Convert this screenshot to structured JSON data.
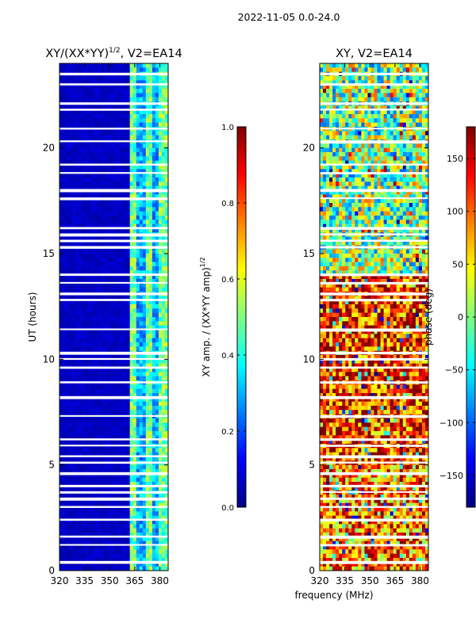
{
  "figure_title": "2022-11-05 0.0-24.0",
  "shared_xlabel": "frequency (MHz)",
  "colors": {
    "jet": [
      "#00007f",
      "#0000ff",
      "#007fff",
      "#00ffff",
      "#7fff7f",
      "#ffff00",
      "#ff7f00",
      "#ff0000",
      "#7f0000"
    ],
    "background": "#ffffff"
  },
  "chart_data": [
    {
      "type": "heatmap",
      "title": "XY/(XX*YY)^1/2, V2=EA14",
      "title_base": "XY/(XX*YY)",
      "title_sup": "1/2",
      "title_rest": ", V2=EA14",
      "xlabel": "",
      "ylabel": "UT (hours)",
      "xlim": [
        320,
        385
      ],
      "ylim": [
        0,
        24
      ],
      "xticks": [
        320,
        335,
        350,
        365,
        380
      ],
      "yticks": [
        0,
        5,
        10,
        15,
        20
      ],
      "description_values": "amplitude mostly ~0.05 below 361 MHz; 0.3-0.6 between 363-382 MHz in vertical stripes",
      "colorbar": {
        "label": "XY amp. / (XX*YY amp)^1/2",
        "label_base": "XY amp. / (XX*YY amp)",
        "label_sup": "1/2",
        "range": [
          0.0,
          1.0
        ],
        "ticks": [
          "0.0",
          "0.2",
          "0.4",
          "0.6",
          "0.8",
          "1.0"
        ],
        "tick_values": [
          0.0,
          0.2,
          0.4,
          0.6,
          0.8,
          1.0
        ]
      }
    },
    {
      "type": "heatmap",
      "title": "XY, V2=EA14",
      "xlabel": "frequency (MHz)",
      "ylabel": "",
      "xlim": [
        320,
        385
      ],
      "ylim": [
        0,
        24
      ],
      "xticks": [
        320,
        335,
        350,
        365,
        380
      ],
      "yticks": [
        0,
        5,
        10,
        15,
        20
      ],
      "description_values": "phase in degrees, noisy; red (~150) dominant between 5-14 h, green/cyan (~-20 to 20) dominant 14-24 h",
      "colorbar": {
        "label": "phase (deg)",
        "range": [
          -180,
          180
        ],
        "ticks": [
          "150",
          "100",
          "50",
          "0",
          "−50",
          "−100",
          "−150"
        ],
        "tick_values": [
          150,
          100,
          50,
          0,
          -50,
          -100,
          -150
        ]
      }
    }
  ]
}
